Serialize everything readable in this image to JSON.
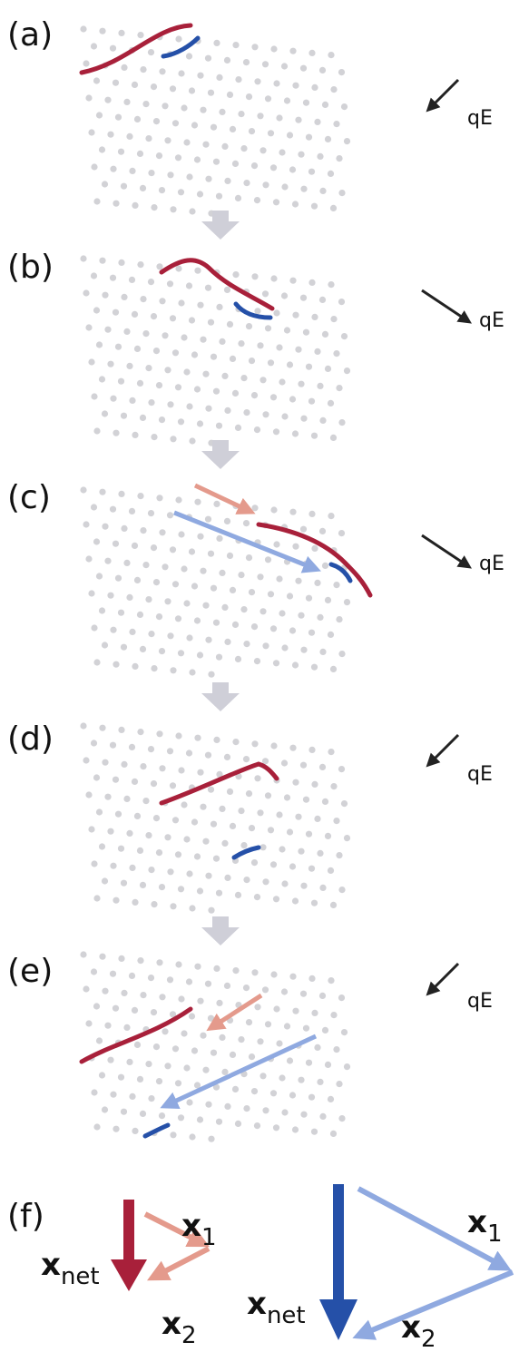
{
  "panels": [
    {
      "label": "(a)",
      "field_label": "qE"
    },
    {
      "label": "(b)",
      "field_label": "qE"
    },
    {
      "label": "(c)",
      "field_label": "qE"
    },
    {
      "label": "(d)",
      "field_label": "qE"
    },
    {
      "label": "(e)",
      "field_label": "qE"
    }
  ],
  "panel_f": {
    "label": "(f)",
    "red": {
      "net": {
        "symbol": "x",
        "subscript": "net"
      },
      "x1": {
        "symbol": "x",
        "subscript": "1"
      },
      "x2": {
        "symbol": "x",
        "subscript": "2"
      }
    },
    "blue": {
      "net": {
        "symbol": "x",
        "subscript": "net"
      },
      "x1": {
        "symbol": "x",
        "subscript": "1"
      },
      "x2": {
        "symbol": "x",
        "subscript": "2"
      }
    }
  }
}
